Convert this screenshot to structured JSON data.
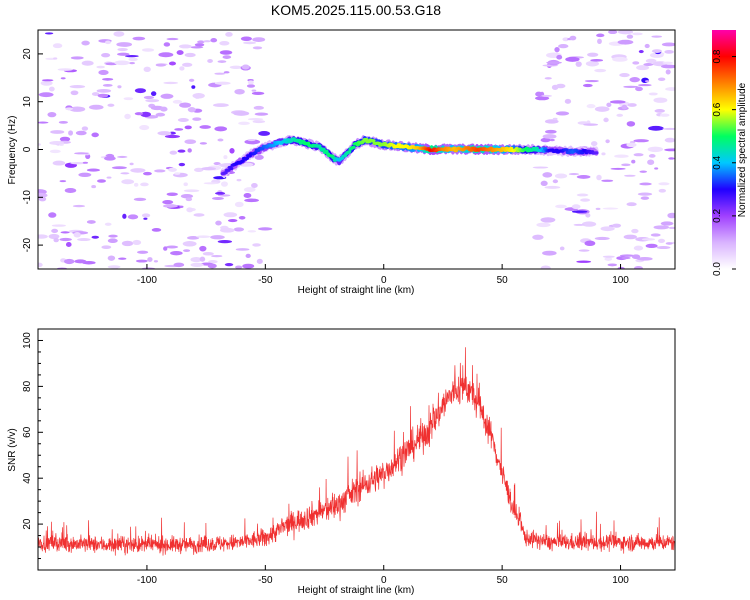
{
  "title": "KOM5.2025.115.00.53.G18",
  "chart_data": [
    {
      "type": "heatmap",
      "xlabel": "Height of straight line (km)",
      "ylabel": "Frequency (Hz)",
      "xlim": [
        -146,
        123
      ],
      "ylim": [
        -25,
        25
      ],
      "x_ticks": [
        -100,
        -50,
        0,
        50,
        100
      ],
      "y_ticks": [
        -20,
        -10,
        0,
        10,
        20
      ],
      "colorbar": {
        "label": "Normalized spectral amplitude",
        "range": [
          0,
          0.9
        ],
        "ticks": [
          0.0,
          0.2,
          0.4,
          0.6,
          0.8
        ],
        "colors": [
          "#ffffff",
          "#d9b3ff",
          "#a040ff",
          "#2000ff",
          "#00c8ff",
          "#00ff60",
          "#ffff00",
          "#ff8000",
          "#ff0000",
          "#ff00aa"
        ]
      },
      "noise_regions": [
        {
          "x_from": -146,
          "x_to": -50,
          "level": 0.08
        },
        {
          "x_from": 65,
          "x_to": 123,
          "level": 0.08
        }
      ],
      "signal_track": {
        "x": [
          -68,
          -62,
          -56,
          -50,
          -44,
          -38,
          -32,
          -27,
          -22,
          -19,
          -16,
          -12,
          -8,
          -4,
          0,
          5,
          10,
          15,
          20,
          25,
          30,
          35,
          40,
          45,
          50,
          55,
          60,
          65,
          70,
          75,
          80,
          85,
          90
        ],
        "frequency": [
          -5,
          -3,
          -1,
          0.5,
          1.5,
          2,
          1.2,
          0.5,
          -1.5,
          -2.5,
          -1,
          1,
          2,
          1.5,
          1,
          0.8,
          0.5,
          0.2,
          0,
          0.1,
          0,
          0.1,
          0,
          0,
          0,
          0,
          0,
          0,
          -0.2,
          -0.3,
          -0.4,
          -0.5,
          -0.5
        ],
        "amplitude": [
          0.25,
          0.3,
          0.3,
          0.35,
          0.4,
          0.45,
          0.5,
          0.45,
          0.5,
          0.4,
          0.45,
          0.5,
          0.55,
          0.55,
          0.55,
          0.6,
          0.6,
          0.65,
          0.8,
          0.7,
          0.65,
          0.7,
          0.75,
          0.7,
          0.65,
          0.6,
          0.5,
          0.45,
          0.3,
          0.3,
          0.35,
          0.3,
          0.25
        ]
      }
    },
    {
      "type": "line",
      "xlabel": "Height of straight line (km)",
      "ylabel": "SNR (v/v)",
      "xlim": [
        -146,
        123
      ],
      "ylim": [
        0,
        105
      ],
      "x_ticks": [
        -100,
        -50,
        0,
        50,
        100
      ],
      "y_ticks": [
        20,
        40,
        60,
        80,
        100
      ],
      "series": [
        {
          "color": "#f03030",
          "envelope_x": [
            -146,
            -120,
            -100,
            -80,
            -60,
            -50,
            -40,
            -30,
            -20,
            -10,
            0,
            10,
            20,
            25,
            30,
            35,
            40,
            45,
            50,
            55,
            60,
            70,
            80,
            100,
            123
          ],
          "envelope_mean": [
            12,
            11,
            11,
            11,
            12,
            14,
            20,
            24,
            28,
            36,
            42,
            52,
            62,
            72,
            78,
            80,
            72,
            60,
            42,
            26,
            14,
            12,
            12,
            12,
            12
          ],
          "envelope_spread": [
            6,
            6,
            6,
            6,
            6,
            7,
            8,
            9,
            10,
            10,
            10,
            11,
            12,
            12,
            12,
            12,
            11,
            10,
            9,
            8,
            6,
            6,
            6,
            6,
            6
          ]
        }
      ]
    }
  ]
}
